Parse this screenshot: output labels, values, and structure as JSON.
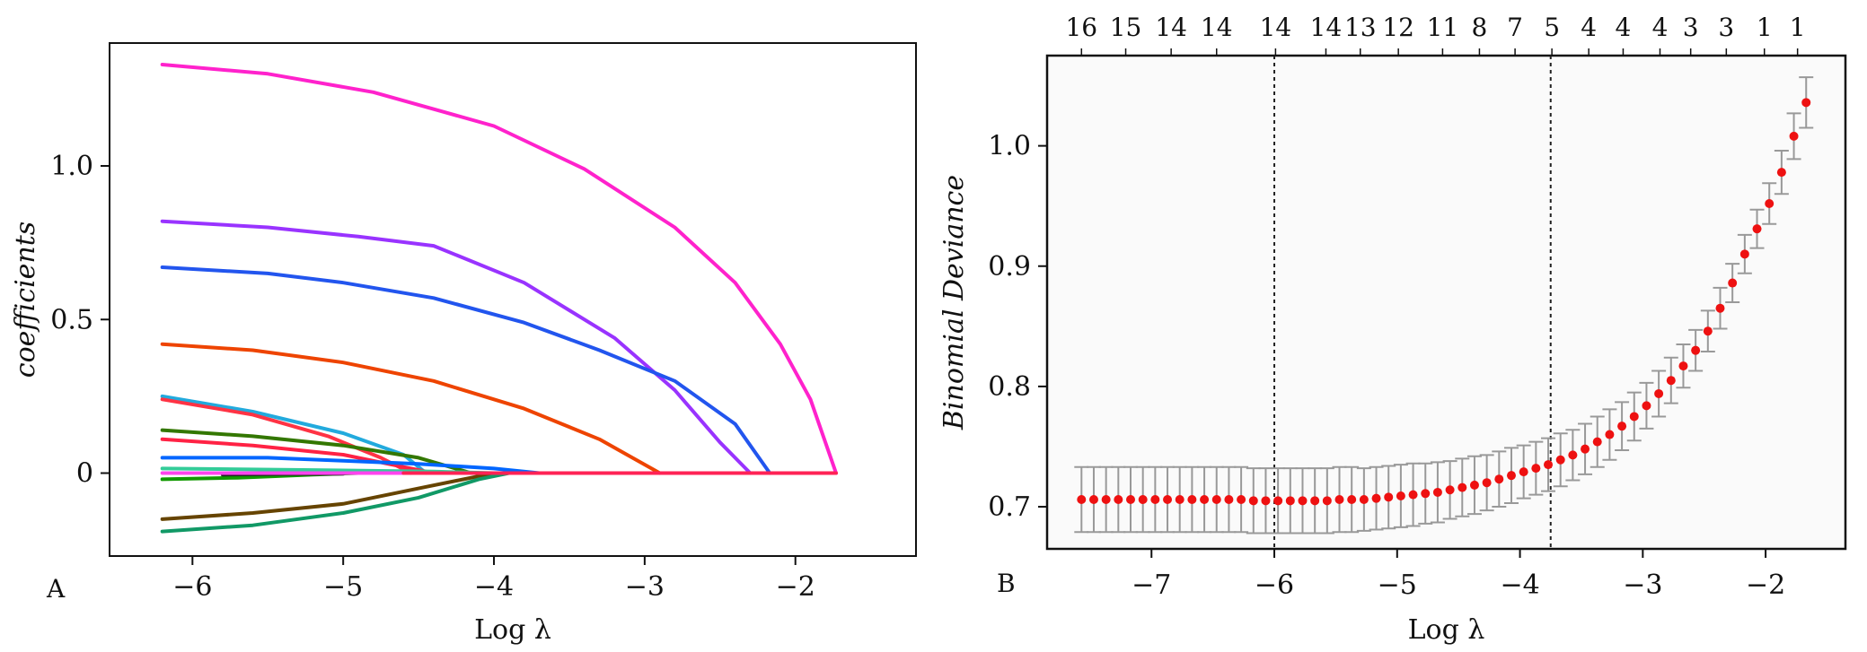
{
  "chart_data": [
    {
      "type": "line",
      "panel_label": "A",
      "xlabel": "Log λ",
      "ylabel": "coefficients",
      "xlim": [
        -6.55,
        -1.2
      ],
      "ylim": [
        -0.27,
        1.4
      ],
      "xticks": [
        -6,
        -5,
        -4,
        -3,
        -2
      ],
      "xtick_labels": [
        "−6",
        "−5",
        "−4",
        "−3",
        "−2"
      ],
      "yticks": [
        0,
        0.5,
        1.0
      ],
      "ytick_labels": [
        "0",
        "0.5",
        "1.0"
      ],
      "grid": false,
      "legend": "none",
      "series": [
        {
          "color": "#ff22cc",
          "points": [
            [
              -6.2,
              1.33
            ],
            [
              -5.5,
              1.3
            ],
            [
              -4.8,
              1.24
            ],
            [
              -4.0,
              1.13
            ],
            [
              -3.4,
              0.99
            ],
            [
              -2.8,
              0.8
            ],
            [
              -2.4,
              0.62
            ],
            [
              -2.1,
              0.42
            ],
            [
              -1.9,
              0.24
            ],
            [
              -1.73,
              0.0
            ]
          ]
        },
        {
          "color": "#9933ff",
          "points": [
            [
              -6.2,
              0.82
            ],
            [
              -5.5,
              0.8
            ],
            [
              -4.9,
              0.77
            ],
            [
              -4.4,
              0.74
            ],
            [
              -3.8,
              0.62
            ],
            [
              -3.2,
              0.44
            ],
            [
              -2.8,
              0.27
            ],
            [
              -2.5,
              0.1
            ],
            [
              -2.3,
              0.0
            ]
          ]
        },
        {
          "color": "#2255ee",
          "points": [
            [
              -6.2,
              0.67
            ],
            [
              -5.5,
              0.65
            ],
            [
              -5.0,
              0.62
            ],
            [
              -4.4,
              0.57
            ],
            [
              -3.8,
              0.49
            ],
            [
              -3.3,
              0.4
            ],
            [
              -2.8,
              0.3
            ],
            [
              -2.4,
              0.16
            ],
            [
              -2.17,
              0.0
            ]
          ]
        },
        {
          "color": "#ee4400",
          "points": [
            [
              -6.2,
              0.42
            ],
            [
              -5.6,
              0.4
            ],
            [
              -5.0,
              0.36
            ],
            [
              -4.4,
              0.3
            ],
            [
              -3.8,
              0.21
            ],
            [
              -3.3,
              0.11
            ],
            [
              -2.9,
              0.0
            ]
          ]
        },
        {
          "color": "#22aadd",
          "points": [
            [
              -6.2,
              0.25
            ],
            [
              -5.6,
              0.2
            ],
            [
              -5.0,
              0.13
            ],
            [
              -4.6,
              0.06
            ],
            [
              -4.45,
              0.0
            ]
          ]
        },
        {
          "color": "#ff3344",
          "points": [
            [
              -6.2,
              0.24
            ],
            [
              -5.6,
              0.19
            ],
            [
              -5.1,
              0.12
            ],
            [
              -4.75,
              0.05
            ],
            [
              -4.55,
              0.0
            ]
          ]
        },
        {
          "color": "#337700",
          "points": [
            [
              -6.2,
              0.14
            ],
            [
              -5.6,
              0.12
            ],
            [
              -5.0,
              0.09
            ],
            [
              -4.5,
              0.05
            ],
            [
              -4.15,
              0.0
            ]
          ]
        },
        {
          "color": "#ff2244",
          "points": [
            [
              -6.2,
              0.11
            ],
            [
              -5.6,
              0.09
            ],
            [
              -5.0,
              0.06
            ],
            [
              -4.6,
              0.02
            ],
            [
              -4.4,
              0.0
            ]
          ]
        },
        {
          "color": "#0066ff",
          "points": [
            [
              -6.2,
              0.05
            ],
            [
              -5.5,
              0.05
            ],
            [
              -5.0,
              0.04
            ],
            [
              -4.5,
              0.03
            ],
            [
              -4.0,
              0.015
            ],
            [
              -3.7,
              0.0
            ]
          ]
        },
        {
          "color": "#33cc99",
          "points": [
            [
              -6.2,
              0.015
            ],
            [
              -5.2,
              0.01
            ],
            [
              -4.4,
              0.005
            ],
            [
              -4.0,
              0.0
            ]
          ]
        },
        {
          "color": "#119900",
          "points": [
            [
              -6.2,
              -0.02
            ],
            [
              -5.7,
              -0.015
            ],
            [
              -5.2,
              -0.005
            ],
            [
              -4.9,
              0.0
            ]
          ]
        },
        {
          "color": "#222222",
          "points": [
            [
              -5.8,
              -0.005
            ],
            [
              -5.4,
              -0.003
            ],
            [
              -5.0,
              -0.002
            ]
          ]
        },
        {
          "color": "#664400",
          "points": [
            [
              -6.2,
              -0.15
            ],
            [
              -5.6,
              -0.13
            ],
            [
              -5.0,
              -0.1
            ],
            [
              -4.5,
              -0.05
            ],
            [
              -4.1,
              -0.01
            ],
            [
              -3.95,
              0.0
            ]
          ]
        },
        {
          "color": "#119966",
          "points": [
            [
              -6.2,
              -0.19
            ],
            [
              -5.6,
              -0.17
            ],
            [
              -5.0,
              -0.13
            ],
            [
              -4.5,
              -0.08
            ],
            [
              -4.1,
              -0.02
            ],
            [
              -3.9,
              0.0
            ]
          ]
        },
        {
          "color": "#ff44ee",
          "points": [
            [
              -6.2,
              0.0
            ],
            [
              -5.0,
              0.0
            ],
            [
              -4.0,
              0.0
            ],
            [
              -3.0,
              0.0
            ],
            [
              -1.73,
              0.0
            ]
          ]
        },
        {
          "color": "#ff2255",
          "points": [
            [
              -4.6,
              0.0
            ],
            [
              -3.5,
              0.0
            ],
            [
              -2.5,
              0.0
            ],
            [
              -1.73,
              0.0
            ]
          ]
        }
      ]
    },
    {
      "type": "scatter",
      "panel_label": "B",
      "xlabel": "Log λ",
      "ylabel": "Binomial Deviance",
      "xlim": [
        -7.85,
        -1.35
      ],
      "ylim": [
        0.665,
        1.075
      ],
      "xticks": [
        -7,
        -6,
        -5,
        -4,
        -3,
        -2
      ],
      "xtick_labels": [
        "−7",
        "−6",
        "−5",
        "−4",
        "−3",
        "−2"
      ],
      "yticks": [
        0.7,
        0.8,
        0.9,
        1.0
      ],
      "ytick_labels": [
        "0.7",
        "0.8",
        "0.9",
        "1.0"
      ],
      "grid": false,
      "legend": "none",
      "vlines": [
        -6.0,
        -3.75
      ],
      "top_counts": [
        {
          "x": -7.57,
          "label": "16"
        },
        {
          "x": -7.21,
          "label": "15"
        },
        {
          "x": -6.84,
          "label": "14"
        },
        {
          "x": -6.47,
          "label": "14"
        },
        {
          "x": -5.99,
          "label": "14"
        },
        {
          "x": -5.58,
          "label": "14"
        },
        {
          "x": -5.3,
          "label": "13"
        },
        {
          "x": -4.99,
          "label": "12"
        },
        {
          "x": -4.63,
          "label": "11"
        },
        {
          "x": -4.33,
          "label": "8"
        },
        {
          "x": -4.04,
          "label": "7"
        },
        {
          "x": -3.74,
          "label": "5"
        },
        {
          "x": -3.44,
          "label": "4"
        },
        {
          "x": -3.16,
          "label": "4"
        },
        {
          "x": -2.86,
          "label": "4"
        },
        {
          "x": -2.61,
          "label": "3"
        },
        {
          "x": -2.32,
          "label": "3"
        },
        {
          "x": -2.01,
          "label": "1"
        },
        {
          "x": -1.74,
          "label": "1"
        }
      ],
      "point_color": "#ee1111",
      "errorbar_color": "#999999",
      "x": [
        -7.57,
        -7.47,
        -7.37,
        -7.27,
        -7.17,
        -7.07,
        -6.97,
        -6.87,
        -6.77,
        -6.67,
        -6.57,
        -6.47,
        -6.37,
        -6.27,
        -6.17,
        -6.07,
        -5.97,
        -5.87,
        -5.77,
        -5.67,
        -5.57,
        -5.47,
        -5.37,
        -5.27,
        -5.17,
        -5.07,
        -4.97,
        -4.87,
        -4.77,
        -4.67,
        -4.57,
        -4.47,
        -4.37,
        -4.27,
        -4.17,
        -4.07,
        -3.97,
        -3.87,
        -3.77,
        -3.67,
        -3.57,
        -3.47,
        -3.37,
        -3.27,
        -3.17,
        -3.07,
        -2.97,
        -2.87,
        -2.77,
        -2.67,
        -2.57,
        -2.47,
        -2.37,
        -2.27,
        -2.17,
        -2.07,
        -1.97,
        -1.87,
        -1.77,
        -1.67
      ],
      "y": [
        0.706,
        0.706,
        0.706,
        0.706,
        0.706,
        0.706,
        0.706,
        0.706,
        0.706,
        0.706,
        0.706,
        0.706,
        0.706,
        0.706,
        0.705,
        0.705,
        0.705,
        0.705,
        0.705,
        0.705,
        0.705,
        0.706,
        0.706,
        0.706,
        0.707,
        0.708,
        0.709,
        0.71,
        0.711,
        0.712,
        0.714,
        0.716,
        0.718,
        0.72,
        0.723,
        0.726,
        0.729,
        0.732,
        0.735,
        0.739,
        0.743,
        0.748,
        0.754,
        0.76,
        0.767,
        0.775,
        0.784,
        0.794,
        0.805,
        0.817,
        0.83,
        0.846,
        0.865,
        0.886,
        0.91,
        0.931,
        0.952,
        0.978,
        1.008,
        1.036
      ],
      "err": [
        0.027,
        0.027,
        0.027,
        0.027,
        0.027,
        0.027,
        0.027,
        0.027,
        0.027,
        0.027,
        0.027,
        0.027,
        0.027,
        0.027,
        0.027,
        0.027,
        0.027,
        0.027,
        0.027,
        0.027,
        0.027,
        0.027,
        0.027,
        0.026,
        0.026,
        0.026,
        0.026,
        0.026,
        0.025,
        0.025,
        0.024,
        0.024,
        0.024,
        0.023,
        0.023,
        0.023,
        0.022,
        0.022,
        0.022,
        0.022,
        0.021,
        0.021,
        0.021,
        0.021,
        0.02,
        0.02,
        0.019,
        0.019,
        0.019,
        0.018,
        0.017,
        0.017,
        0.017,
        0.016,
        0.016,
        0.016,
        0.017,
        0.018,
        0.019,
        0.021
      ]
    }
  ]
}
